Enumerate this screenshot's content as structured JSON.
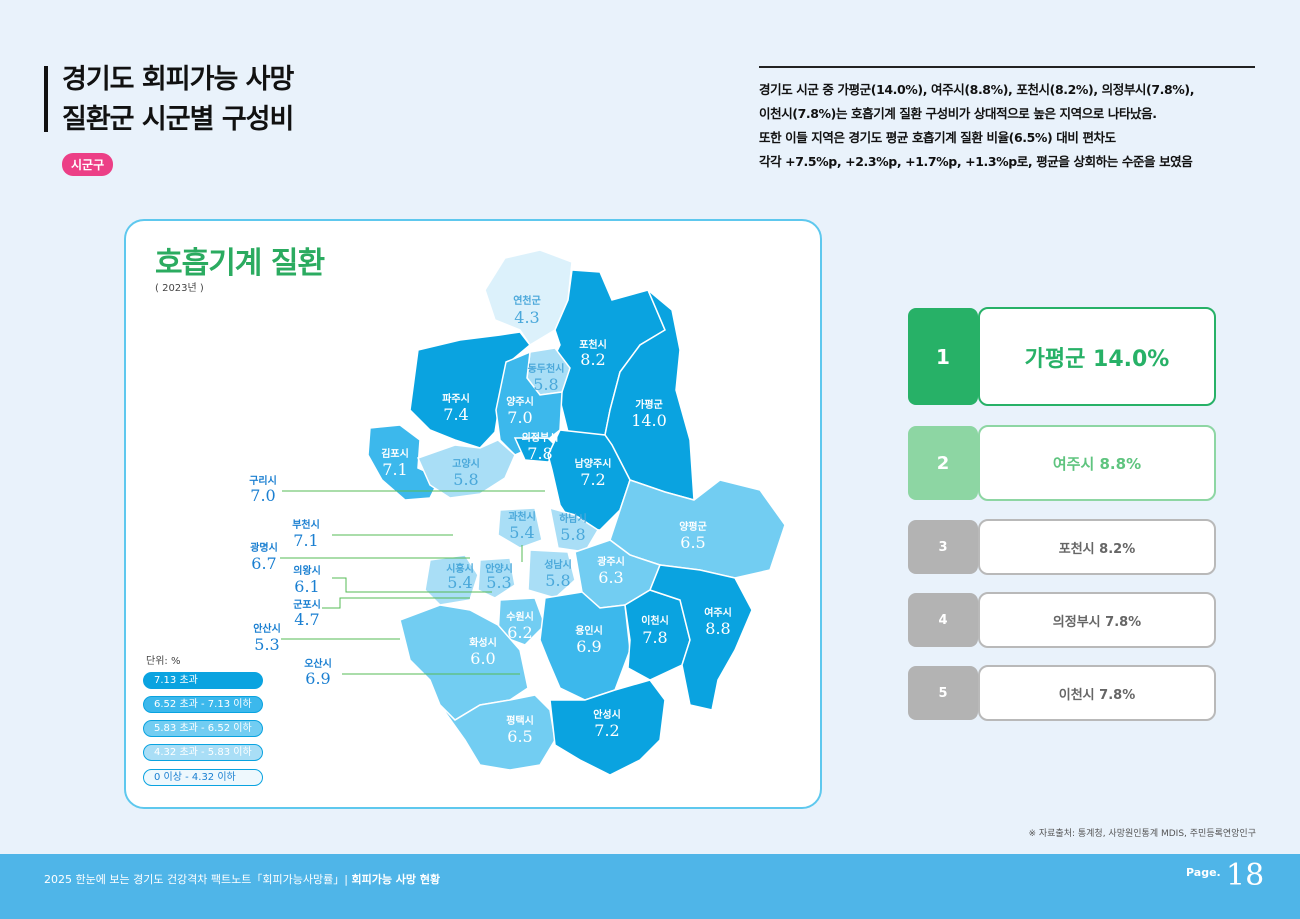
{
  "header": {
    "title_line1": "경기도 회피가능 사망",
    "title_line2": "질환군 시군별 구성비",
    "badge": "시군구"
  },
  "description": [
    "경기도 시군 중 가평군(14.0%), 여주시(8.8%), 포천시(8.2%), 의정부시(7.8%),",
    "이천시(7.8%)는 호흡기계 질환 구성비가 상대적으로 높은 지역으로 나타났음.",
    "또한 이들 지역은 경기도 평균 호흡기계 질환 비율(6.5%) 대비 편차도",
    "각각 +7.5%p, +2.3%p, +1.7%p, +1.3%p로, 평균을 상회하는 수준을 보였음"
  ],
  "map": {
    "title": "호흡기계 질환",
    "year": "( 2023년 )",
    "colors": {
      "c1": "#0aa3e0",
      "c2": "#3cb8ec",
      "c3": "#72cdf2",
      "c4": "#a9def6",
      "c5": "#dcf1fb"
    },
    "regions": [
      {
        "name": "연천군",
        "value": "4.3",
        "tier": "c5"
      },
      {
        "name": "포천시",
        "value": "8.2",
        "tier": "c1"
      },
      {
        "name": "동두천시",
        "value": "5.8",
        "tier": "c4"
      },
      {
        "name": "파주시",
        "value": "7.4",
        "tier": "c1"
      },
      {
        "name": "양주시",
        "value": "7.0",
        "tier": "c2"
      },
      {
        "name": "가평군",
        "value": "14.0",
        "tier": "c1"
      },
      {
        "name": "의정부시",
        "value": "7.8",
        "tier": "c1"
      },
      {
        "name": "김포시",
        "value": "7.1",
        "tier": "c2"
      },
      {
        "name": "고양시",
        "value": "5.8",
        "tier": "c4"
      },
      {
        "name": "남양주시",
        "value": "7.2",
        "tier": "c1"
      },
      {
        "name": "과천시",
        "value": "5.4",
        "tier": "c4"
      },
      {
        "name": "하남시",
        "value": "5.8",
        "tier": "c4"
      },
      {
        "name": "양평군",
        "value": "6.5",
        "tier": "c3"
      },
      {
        "name": "시흥시",
        "value": "5.4",
        "tier": "c4"
      },
      {
        "name": "안양시",
        "value": "5.3",
        "tier": "c4"
      },
      {
        "name": "성남시",
        "value": "5.8",
        "tier": "c4"
      },
      {
        "name": "광주시",
        "value": "6.3",
        "tier": "c3"
      },
      {
        "name": "수원시",
        "value": "6.2",
        "tier": "c3"
      },
      {
        "name": "용인시",
        "value": "6.9",
        "tier": "c2"
      },
      {
        "name": "이천시",
        "value": "7.8",
        "tier": "c1"
      },
      {
        "name": "여주시",
        "value": "8.8",
        "tier": "c1"
      },
      {
        "name": "화성시",
        "value": "6.0",
        "tier": "c3"
      },
      {
        "name": "평택시",
        "value": "6.5",
        "tier": "c3"
      },
      {
        "name": "안성시",
        "value": "7.2",
        "tier": "c1"
      }
    ],
    "callouts": [
      {
        "name": "구리시",
        "value": "7.0"
      },
      {
        "name": "부천시",
        "value": "7.1"
      },
      {
        "name": "광명시",
        "value": "6.7"
      },
      {
        "name": "의왕시",
        "value": "6.1"
      },
      {
        "name": "군포시",
        "value": "4.7"
      },
      {
        "name": "안산시",
        "value": "5.3"
      },
      {
        "name": "오산시",
        "value": "6.9"
      }
    ],
    "legend": {
      "unit": "단위: %",
      "items": [
        {
          "label": "7.13 초과",
          "color": "#0aa3e0",
          "text_color": "#ffffff"
        },
        {
          "label": "6.52 초과 - 7.13 이하",
          "color": "#3cb8ec",
          "text_color": "#ffffff"
        },
        {
          "label": "5.83 초과 - 6.52 이하",
          "color": "#72cdf2",
          "text_color": "#ffffff"
        },
        {
          "label": "4.32 초과 - 5.83 이하",
          "color": "#a9def6",
          "text_color": "#ffffff"
        },
        {
          "label": "0 이상 - 4.32 이하",
          "color": "#eef8fd",
          "text_color": "#1a7fd1"
        }
      ]
    }
  },
  "ranking": [
    {
      "rank": "1",
      "text": "가평군 14.0%",
      "num_bg": "#27b167",
      "border": "#27b167",
      "text_color": "#27b167"
    },
    {
      "rank": "2",
      "text": "여주시 8.8%",
      "num_bg": "#8dd6a3",
      "border": "#8dd6a3",
      "text_color": "#5fc47f"
    },
    {
      "rank": "3",
      "text": "포천시 8.2%",
      "num_bg": "#b3b3b3",
      "border": "#b9b9b9",
      "text_color": "#666666"
    },
    {
      "rank": "4",
      "text": "의정부시 7.8%",
      "num_bg": "#b3b3b3",
      "border": "#b9b9b9",
      "text_color": "#666666"
    },
    {
      "rank": "5",
      "text": "이천시 7.8%",
      "num_bg": "#b3b3b3",
      "border": "#b9b9b9",
      "text_color": "#666666"
    }
  ],
  "source": "※ 자료출처: 통계청, 사망원인통계 MDIS, 주민등록연앙인구",
  "footer": {
    "left": "2025 한눈에 보는 경기도 건강격차 팩트노트「회피가능사망률」|",
    "section": "회피가능 사망 현황",
    "page_label": "Page.",
    "page_number": "18"
  }
}
